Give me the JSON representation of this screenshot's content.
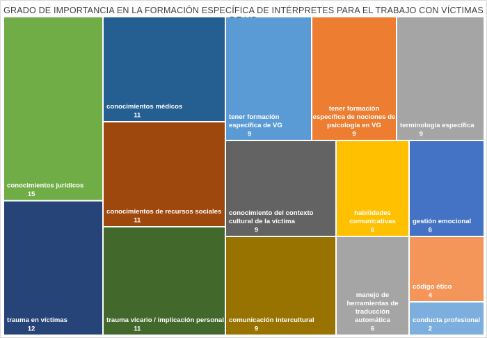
{
  "chart_data": {
    "type": "treemap",
    "title": "GRADO DE IMPORTANCIA EN LA FORMACIÓN ESPECÍFICA DE INTÉRPRETES PARA EL TRABAJO CON VÍCTIMAS DE VG",
    "items": [
      {
        "label": "conocimientos jurídicos",
        "value": 15,
        "color": "#70ad47"
      },
      {
        "label": "trauma en víctimas",
        "value": 12,
        "color": "#264478"
      },
      {
        "label": "conocimientos médicos",
        "value": 11,
        "color": "#255e91"
      },
      {
        "label": "conocimientos de recursos sociales",
        "value": 11,
        "color": "#9e480e"
      },
      {
        "label": "trauma vicario / implicación personal",
        "value": 11,
        "color": "#43682b"
      },
      {
        "label": "tener formación específica de VG",
        "value": 9,
        "color": "#5b9bd5"
      },
      {
        "label": "tener formación específica de nociones de psicología en VG",
        "value": 9,
        "color": "#ed7d31"
      },
      {
        "label": "terminología específica",
        "value": 9,
        "color": "#a5a5a5"
      },
      {
        "label": "conocimiento del contexto cultural de la víctima",
        "value": 9,
        "color": "#636363"
      },
      {
        "label": "comunicación intercultural",
        "value": 9,
        "color": "#997300"
      },
      {
        "label": "habilidades comunicativas",
        "value": 6,
        "color": "#ffc000"
      },
      {
        "label": "gestión emocional",
        "value": 6,
        "color": "#4472c4"
      },
      {
        "label": "manejo de herramientas de traducción automática",
        "value": 6,
        "color": "#a5a5a5"
      },
      {
        "label": "código ético",
        "value": 4,
        "color": "#f4965a"
      },
      {
        "label": "conducta profesional",
        "value": 2,
        "color": "#7cafdd"
      }
    ]
  }
}
